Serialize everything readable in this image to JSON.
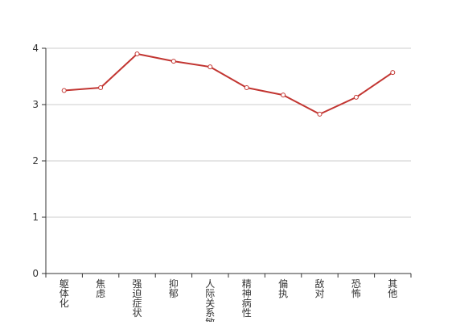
{
  "chart_data": {
    "type": "line",
    "categories": [
      "躯体化",
      "焦虑",
      "强迫症状",
      "抑郁",
      "人际关系敏感",
      "精神病性",
      "偏执",
      "敌对",
      "恐怖",
      "其他"
    ],
    "series": [
      {
        "values": [
          3.25,
          3.3,
          3.9,
          3.77,
          3.67,
          3.3,
          3.17,
          2.83,
          3.13,
          3.57
        ],
        "color": "#c23531"
      }
    ],
    "y_ticks": [
      "0",
      "1",
      "2",
      "3",
      "4"
    ],
    "ylim": [
      0,
      4
    ],
    "grid": true,
    "grid_color": "#cccccc",
    "axis_color": "#333333",
    "title": "",
    "xlabel": "",
    "ylabel": ""
  }
}
